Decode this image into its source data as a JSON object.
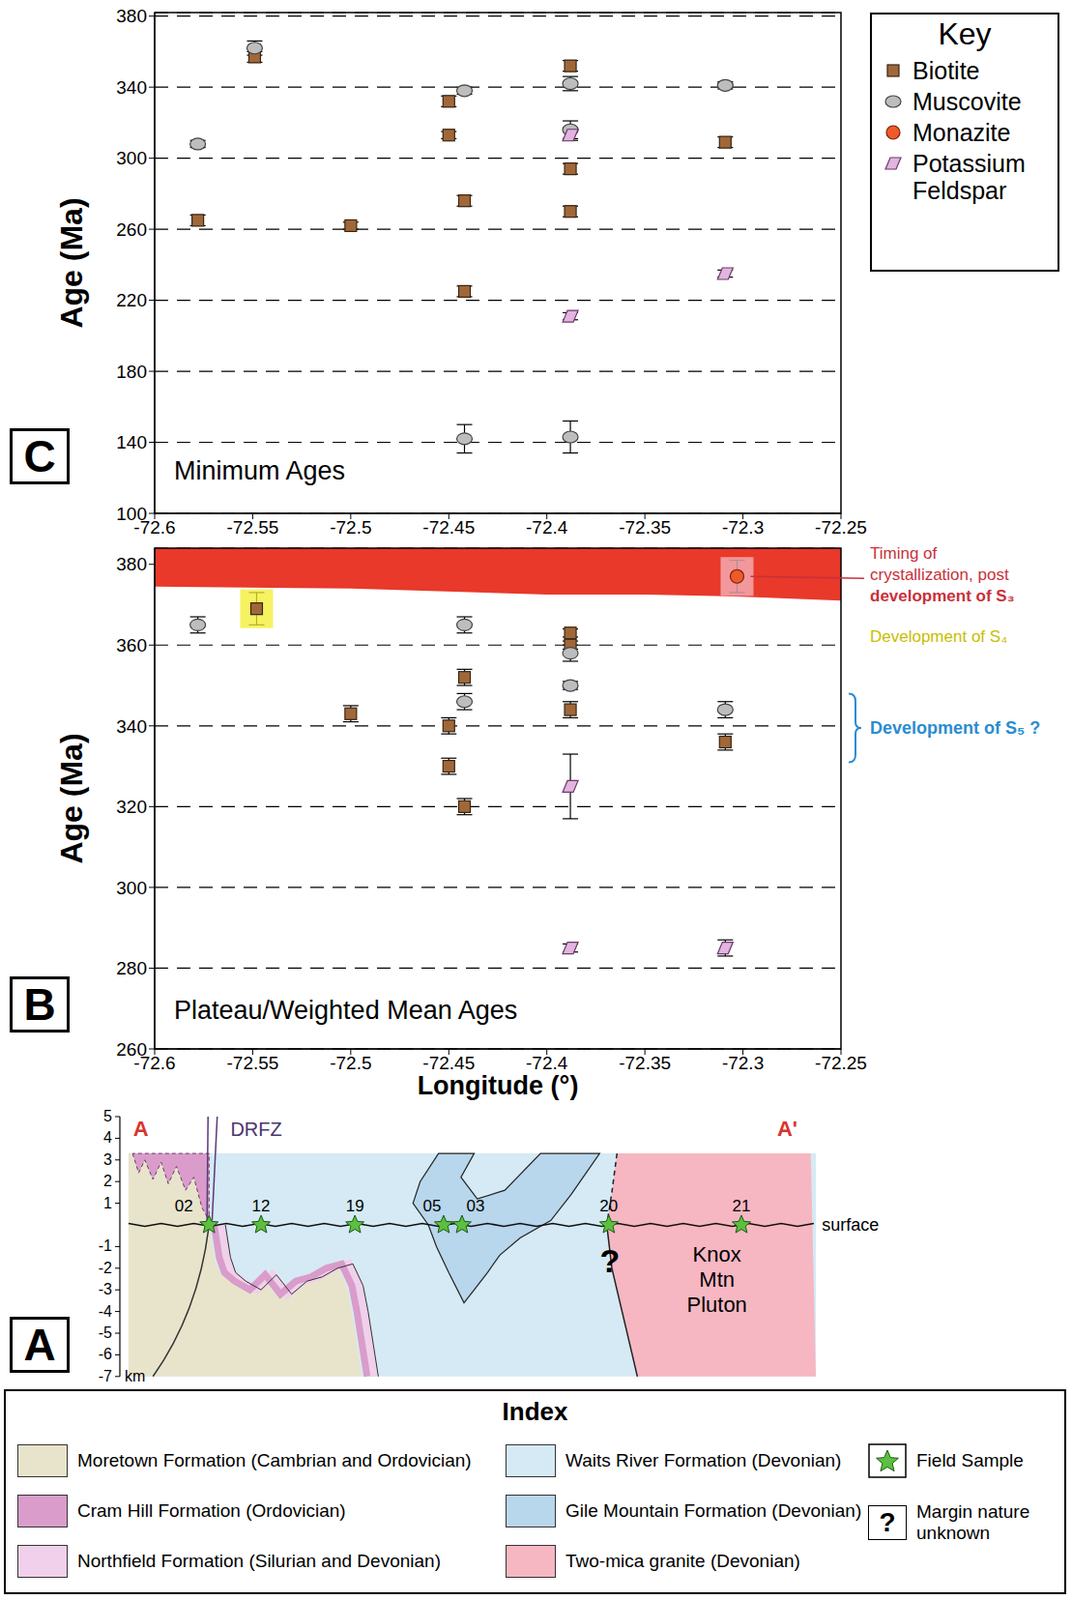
{
  "chart_data": [
    {
      "type": "scatter",
      "panel": "C",
      "title": "Minimum Ages",
      "y_label": "Age (Ma)",
      "xlim": [
        -72.6,
        -72.25
      ],
      "xticks": [
        -72.6,
        -72.55,
        -72.5,
        -72.45,
        -72.4,
        -72.35,
        -72.3,
        -72.25
      ],
      "ylim": [
        100,
        382
      ],
      "yticks": [
        100,
        140,
        180,
        220,
        260,
        300,
        340,
        380
      ],
      "grid": true,
      "legend": "right",
      "legend_title": "Key",
      "series": [
        {
          "name": "Biotite",
          "color": "#a0683a",
          "marker": "square",
          "x": [
            -72.549,
            -72.578,
            -72.5,
            -72.45,
            -72.45,
            -72.442,
            -72.442,
            -72.388,
            -72.388,
            -72.388,
            -72.309
          ],
          "values": [
            357,
            265,
            262,
            332,
            313,
            276,
            225,
            352,
            294,
            270,
            309
          ],
          "errors": [
            3,
            3,
            2,
            3,
            2,
            3,
            3,
            3,
            3,
            3,
            3
          ]
        },
        {
          "name": "Muscovite",
          "color": "#bdbdbd",
          "marker": "ellipse",
          "x": [
            -72.578,
            -72.549,
            -72.442,
            -72.442,
            -72.388,
            -72.388,
            -72.388,
            -72.309
          ],
          "values": [
            308,
            362,
            338,
            142,
            342,
            316,
            143,
            341
          ],
          "errors": [
            2,
            4,
            2,
            8,
            4,
            5,
            9,
            2
          ]
        },
        {
          "name": "Potassium Feldspar",
          "color": "#e2b4df",
          "marker": "parallelogram",
          "x": [
            -72.388,
            -72.388,
            -72.309
          ],
          "values": [
            313,
            211,
            235
          ],
          "errors": [
            3,
            2,
            2
          ]
        }
      ]
    },
    {
      "type": "scatter",
      "panel": "B",
      "title": "Plateau/Weighted Mean Ages",
      "x_label": "Longitude (°)",
      "y_label": "Age (Ma)",
      "xlim": [
        -72.6,
        -72.25
      ],
      "xticks": [
        -72.6,
        -72.55,
        -72.5,
        -72.45,
        -72.4,
        -72.35,
        -72.3,
        -72.25
      ],
      "ylim": [
        260,
        384
      ],
      "yticks": [
        260,
        280,
        300,
        320,
        340,
        360,
        380
      ],
      "grid": true,
      "band": {
        "x": [
          -72.6,
          -72.5,
          -72.4,
          -72.35,
          -72.3,
          -72.25
        ],
        "lower": [
          374.5,
          374,
          372.5,
          372.5,
          372,
          371
        ],
        "color": "#e8392a"
      },
      "annotations": [
        {
          "text": "Timing of crystallization, post development of S₃",
          "x": -72.303,
          "y": 377
        },
        {
          "text": "Development of S₄",
          "x": -72.548,
          "y": 369
        },
        {
          "text": "Development of S₅ ?",
          "y": [
            331,
            348
          ]
        }
      ],
      "series": [
        {
          "name": "Biotite",
          "color": "#a0683a",
          "marker": "square",
          "x": [
            -72.548,
            -72.5,
            -72.45,
            -72.45,
            -72.442,
            -72.442,
            -72.388,
            -72.388,
            -72.388,
            -72.309
          ],
          "values": [
            369,
            343,
            340,
            330,
            352,
            320,
            363,
            360,
            344,
            336
          ],
          "errors": [
            4,
            2,
            2,
            2,
            2,
            2,
            1,
            1,
            2,
            2
          ]
        },
        {
          "name": "Muscovite",
          "color": "#bdbdbd",
          "marker": "ellipse",
          "x": [
            -72.578,
            -72.442,
            -72.442,
            -72.388,
            -72.388,
            -72.309
          ],
          "values": [
            365,
            365,
            346,
            358,
            350,
            344
          ],
          "errors": [
            2,
            2,
            2,
            2,
            1,
            2
          ]
        },
        {
          "name": "Monazite",
          "color": "#ef5a2a",
          "marker": "circle",
          "x": [
            -72.303
          ],
          "values": [
            377
          ],
          "errors": [
            4
          ]
        },
        {
          "name": "Potassium Feldspar",
          "color": "#e2b4df",
          "marker": "parallelogram",
          "x": [
            -72.388,
            -72.388,
            -72.309
          ],
          "values": [
            325,
            285,
            285
          ],
          "errors": [
            8,
            1,
            2
          ]
        }
      ]
    }
  ],
  "cross_section": {
    "panel": "A",
    "ends": [
      "A",
      "A'"
    ],
    "depth_ticks": [
      5,
      4,
      3,
      2,
      1,
      -1,
      -2,
      -3,
      -4,
      -5,
      -6,
      -7
    ],
    "depth_unit": "km",
    "fault": "DRFZ",
    "surface_label": "surface",
    "unknown_margin": "?",
    "pluton": "Knox Mtn Pluton",
    "samples": [
      "02",
      "12",
      "19",
      "05",
      "03",
      "20",
      "21"
    ]
  },
  "index": {
    "title": "Index",
    "entries": [
      {
        "label": "Moretown Formation (Cambrian and Ordovician)",
        "color": "#e8e4cc"
      },
      {
        "label": "Cram Hill Formation (Ordovician)",
        "color": "#d99ccb"
      },
      {
        "label": "Northfield Formation (Silurian and Devonian)",
        "color": "#f0d0ea"
      },
      {
        "label": "Waits River Formation (Devonian)",
        "color": "#d5eaf5"
      },
      {
        "label": "Gile Mountain Formation (Devonian)",
        "color": "#b8d6ec"
      },
      {
        "label": "Two-mica granite (Devonian)",
        "color": "#f6b7c2"
      }
    ],
    "field_sample": "Field Sample",
    "unknown": {
      "symbol": "?",
      "label": "Margin nature unknown"
    }
  }
}
